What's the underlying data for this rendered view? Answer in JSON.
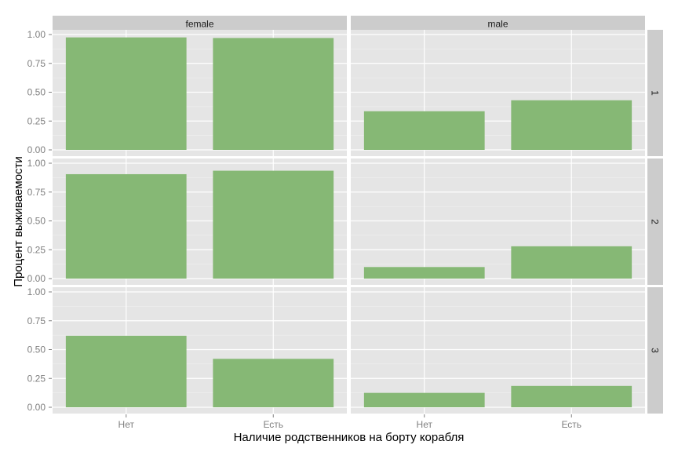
{
  "chart_data": {
    "type": "bar",
    "facet_cols": [
      "female",
      "male"
    ],
    "facet_rows": [
      "1",
      "2",
      "3"
    ],
    "categories": [
      "Нет",
      "Есть"
    ],
    "xlabel": "Наличие родственников на борту корабля",
    "ylabel": "Процент выживаемости",
    "ylim": [
      0,
      1
    ],
    "yticks": [
      "0.00",
      "0.25",
      "0.50",
      "0.75",
      "1.00"
    ],
    "grid": true,
    "bar_color": "#86B875",
    "panel_background": "#E5E5E5",
    "strip_background": "#CCCCCC",
    "panels": [
      {
        "row": "1",
        "col": "female",
        "values": [
          0.975,
          0.97
        ]
      },
      {
        "row": "1",
        "col": "male",
        "values": [
          0.335,
          0.43
        ]
      },
      {
        "row": "2",
        "col": "female",
        "values": [
          0.905,
          0.935
        ]
      },
      {
        "row": "2",
        "col": "male",
        "values": [
          0.1,
          0.28
        ]
      },
      {
        "row": "3",
        "col": "female",
        "values": [
          0.62,
          0.42
        ]
      },
      {
        "row": "3",
        "col": "male",
        "values": [
          0.125,
          0.185
        ]
      }
    ]
  }
}
